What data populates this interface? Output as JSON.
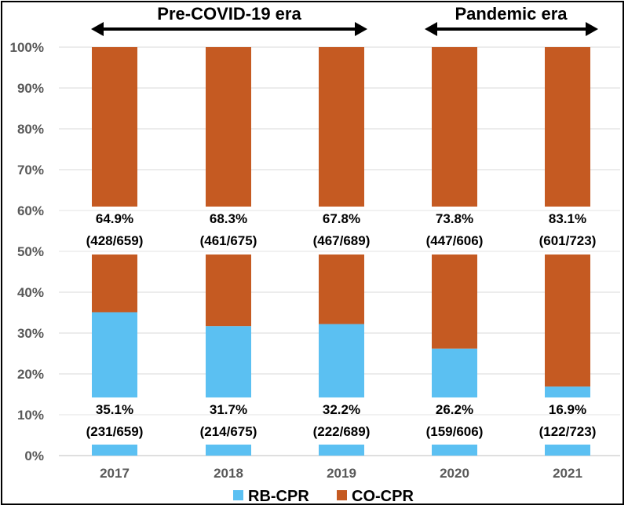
{
  "chart_data": {
    "type": "bar",
    "stacked": true,
    "percent": true,
    "categories": [
      "2017",
      "2018",
      "2019",
      "2020",
      "2021"
    ],
    "series": [
      {
        "name": "RB-CPR",
        "color": "#5BC0F2",
        "values": [
          35.1,
          31.7,
          32.2,
          26.2,
          16.9
        ]
      },
      {
        "name": "CO-CPR",
        "color": "#C55A22",
        "values": [
          64.9,
          68.3,
          67.8,
          73.8,
          83.1
        ]
      }
    ],
    "labels": {
      "rb": [
        "35.1%",
        "31.7%",
        "32.2%",
        "26.2%",
        "16.9%"
      ],
      "rb_counts": [
        "(231/659)",
        "(214/675)",
        "(222/689)",
        "(159/606)",
        "(122/723)"
      ],
      "co": [
        "64.9%",
        "68.3%",
        "67.8%",
        "73.8%",
        "83.1%"
      ],
      "co_counts": [
        "(428/659)",
        "(461/675)",
        "(467/689)",
        "(447/606)",
        "(601/723)"
      ]
    },
    "yticks": [
      "0%",
      "10%",
      "20%",
      "30%",
      "40%",
      "50%",
      "60%",
      "70%",
      "80%",
      "90%",
      "100%"
    ],
    "ylim": [
      0,
      100
    ],
    "grid": true,
    "legend": "bottom",
    "eras": [
      {
        "label": "Pre-COVID-19 era",
        "from": "2017",
        "to": "2019"
      },
      {
        "label": "Pandemic era",
        "from": "2020",
        "to": "2021"
      }
    ]
  }
}
